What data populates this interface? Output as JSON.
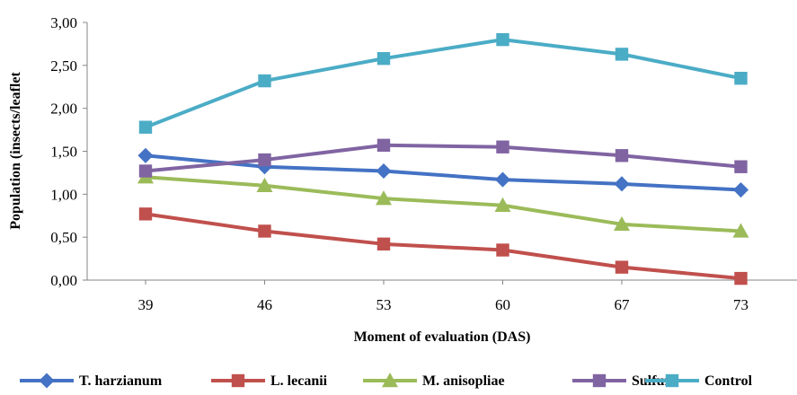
{
  "chart_data": {
    "type": "line",
    "title": "",
    "xlabel": "Moment of evaluation (DAS)",
    "ylabel": "Population (insects/leaflet",
    "categories": [
      "39",
      "46",
      "53",
      "60",
      "67",
      "73"
    ],
    "ylim": [
      0,
      3
    ],
    "yticks": [
      "0,00",
      "0,50",
      "1,00",
      "1,50",
      "2,00",
      "2,50",
      "3,00"
    ],
    "grid": false,
    "legend_position": "bottom",
    "series": [
      {
        "name": "T. harzianum",
        "color": "#4472c4",
        "marker": "diamond",
        "values": [
          1.45,
          1.32,
          1.27,
          1.17,
          1.12,
          1.05
        ]
      },
      {
        "name": "L. lecanii",
        "color": "#c0504d",
        "marker": "square",
        "values": [
          0.77,
          0.57,
          0.42,
          0.35,
          0.15,
          0.02
        ]
      },
      {
        "name": "M. anisopliae",
        "color": "#9bbb59",
        "marker": "triangle",
        "values": [
          1.2,
          1.1,
          0.95,
          0.87,
          0.65,
          0.57
        ]
      },
      {
        "name": "Sulfur",
        "color": "#8064a2",
        "marker": "square",
        "values": [
          1.27,
          1.4,
          1.57,
          1.55,
          1.45,
          1.32
        ]
      },
      {
        "name": "Control",
        "color": "#4bacc6",
        "marker": "square",
        "values": [
          1.78,
          2.32,
          2.58,
          2.8,
          2.63,
          2.35
        ]
      }
    ]
  }
}
